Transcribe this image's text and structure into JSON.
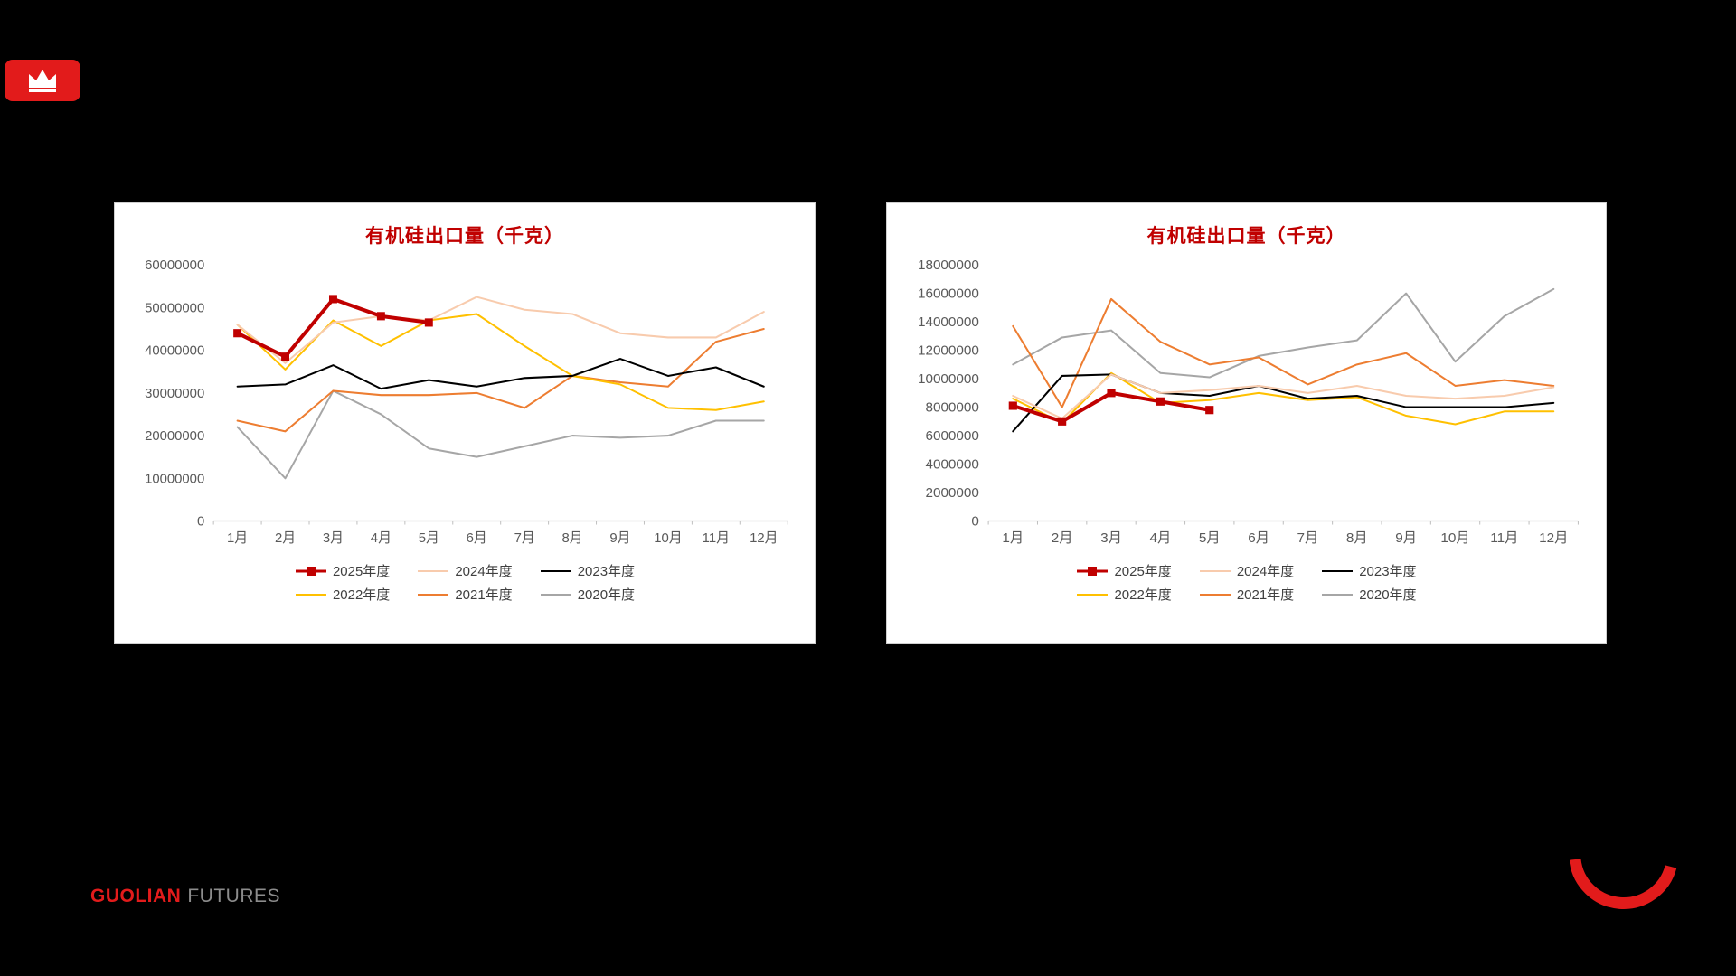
{
  "slide": {
    "background": "#000000"
  },
  "logo": {
    "name": "crown-logo",
    "background": "#e21b1b"
  },
  "footer": {
    "brand_primary": "GUOLIAN",
    "brand_secondary": "FUTURES"
  },
  "chart_data": [
    {
      "type": "line",
      "title": "有机硅出口量（千克）",
      "xlabel": "",
      "ylabel": "",
      "ylim": [
        0,
        60000000
      ],
      "ytick_step": 10000000,
      "grid": false,
      "legend_position": "bottom",
      "categories": [
        "1月",
        "2月",
        "3月",
        "4月",
        "5月",
        "6月",
        "7月",
        "8月",
        "9月",
        "10月",
        "11月",
        "12月"
      ],
      "series": [
        {
          "name": "2025年度",
          "color": "#c00000",
          "width": 4,
          "marker": "square",
          "values": [
            44000000,
            38500000,
            52000000,
            48000000,
            46500000
          ]
        },
        {
          "name": "2024年度",
          "color": "#f8cbad",
          "width": 2,
          "values": [
            46000000,
            37000000,
            46500000,
            48000000,
            47000000,
            52500000,
            49500000,
            48500000,
            44000000,
            43000000,
            43000000,
            49000000
          ]
        },
        {
          "name": "2023年度",
          "color": "#000000",
          "width": 2,
          "values": [
            31500000,
            32000000,
            36500000,
            31000000,
            33000000,
            31500000,
            33500000,
            34000000,
            38000000,
            34000000,
            36000000,
            31500000
          ]
        },
        {
          "name": "2022年度",
          "color": "#ffc000",
          "width": 2,
          "values": [
            46000000,
            35500000,
            47000000,
            41000000,
            47000000,
            48500000,
            41000000,
            34000000,
            32000000,
            26500000,
            26000000,
            28000000
          ]
        },
        {
          "name": "2021年度",
          "color": "#ed7d31",
          "width": 2,
          "values": [
            23500000,
            21000000,
            30500000,
            29500000,
            29500000,
            30000000,
            26500000,
            34000000,
            32500000,
            31500000,
            42000000,
            45000000
          ]
        },
        {
          "name": "2020年度",
          "color": "#a6a6a6",
          "width": 2,
          "values": [
            22000000,
            10000000,
            30500000,
            25000000,
            17000000,
            15000000,
            17500000,
            20000000,
            19500000,
            20000000,
            23500000,
            23500000
          ]
        }
      ]
    },
    {
      "type": "line",
      "title": "有机硅出口量（千克）",
      "xlabel": "",
      "ylabel": "",
      "ylim": [
        0,
        18000000
      ],
      "ytick_step": 2000000,
      "grid": false,
      "legend_position": "bottom",
      "categories": [
        "1月",
        "2月",
        "3月",
        "4月",
        "5月",
        "6月",
        "7月",
        "8月",
        "9月",
        "10月",
        "11月",
        "12月"
      ],
      "series": [
        {
          "name": "2025年度",
          "color": "#c00000",
          "width": 4,
          "marker": "square",
          "values": [
            8100000,
            7000000,
            9000000,
            8400000,
            7800000
          ]
        },
        {
          "name": "2024年度",
          "color": "#f8cbad",
          "width": 2,
          "values": [
            8800000,
            7200000,
            10300000,
            9000000,
            9200000,
            9500000,
            9000000,
            9500000,
            8800000,
            8600000,
            8800000,
            9400000
          ]
        },
        {
          "name": "2023年度",
          "color": "#000000",
          "width": 2,
          "values": [
            6300000,
            10200000,
            10300000,
            9000000,
            8800000,
            9500000,
            8600000,
            8800000,
            8000000,
            8000000,
            8000000,
            8300000
          ]
        },
        {
          "name": "2022年度",
          "color": "#ffc000",
          "width": 2,
          "values": [
            8600000,
            6900000,
            10400000,
            8300000,
            8500000,
            9000000,
            8500000,
            8700000,
            7400000,
            6800000,
            7700000,
            7700000
          ]
        },
        {
          "name": "2021年度",
          "color": "#ed7d31",
          "width": 2,
          "values": [
            13700000,
            8000000,
            15600000,
            12600000,
            11000000,
            11500000,
            9600000,
            11000000,
            11800000,
            9500000,
            9900000,
            9500000
          ]
        },
        {
          "name": "2020年度",
          "color": "#a6a6a6",
          "width": 2,
          "values": [
            11000000,
            12900000,
            13400000,
            10400000,
            10100000,
            11600000,
            12200000,
            12700000,
            16000000,
            11200000,
            14400000,
            16300000
          ]
        }
      ]
    }
  ]
}
